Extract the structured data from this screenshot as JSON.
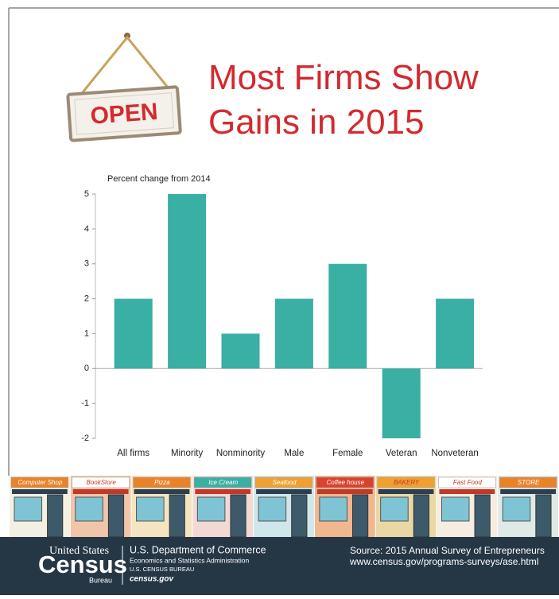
{
  "chart_data": {
    "type": "bar",
    "title": "Most Firms Show Gains in 2015",
    "y_axis_label": "Percent change from 2014",
    "categories": [
      "All firms",
      "Minority",
      "Nonminority",
      "Male",
      "Female",
      "Veteran",
      "Nonveteran"
    ],
    "values": [
      2,
      5,
      1,
      2,
      3,
      -2,
      2
    ],
    "color": "#3aafa3",
    "ylim": [
      -2,
      5
    ],
    "yticks": [
      -2,
      -1,
      0,
      1,
      2,
      3,
      4,
      5
    ],
    "grid": false
  },
  "sign": "OPEN",
  "stores": [
    "Computer Shop",
    "BookStore",
    "Pizza",
    "Ice Cream",
    "Seafood",
    "Coffee house",
    "BAKERY",
    "Fast Food",
    "STORE"
  ],
  "footer": {
    "agency_top": "United States",
    "agency_name": "Census",
    "agency_bottom": "Bureau",
    "department": "U.S. Department of Commerce",
    "administration": "Economics and Statistics Administration",
    "bureau": "U.S. CENSUS BUREAU",
    "website": "census.gov",
    "source": "Source: 2015 Annual Survey of Entrepreneurs",
    "source_url": "www.census.gov/programs-surveys/ase.html"
  }
}
